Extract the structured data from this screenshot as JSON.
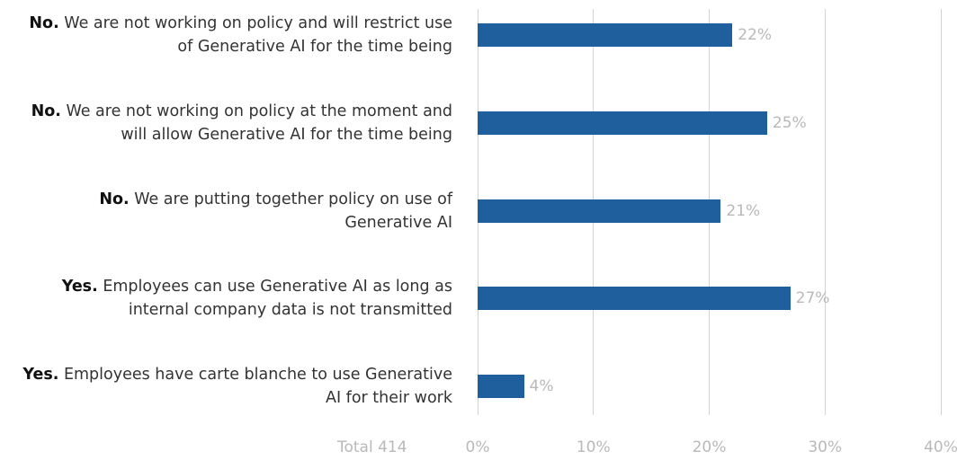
{
  "chart_data": {
    "type": "hbar",
    "categories": [
      "No. We are not working on policy and will restrict use of Generative AI for the time being",
      "No. We are not working on policy at the moment and will allow Generative AI for the time being",
      "No. We are putting together policy on use of Generative AI",
      "Yes. Employees can use Generative AI as long as internal company data is not transmitted",
      "Yes. Employees have carte blanche to use Generative AI for their work"
    ],
    "values": [
      22,
      25,
      21,
      27,
      4
    ],
    "value_labels": [
      "22%",
      "25%",
      "21%",
      "27%",
      "4%"
    ],
    "color": "#1f5f9e",
    "xlim": [
      0,
      40
    ],
    "xticks": [
      {
        "value": 0,
        "label": "0%"
      },
      {
        "value": 10,
        "label": "10%"
      },
      {
        "value": 20,
        "label": "20%"
      },
      {
        "value": 30,
        "label": "30%"
      },
      {
        "value": 40,
        "label": "40%"
      }
    ],
    "grid": true,
    "annotation": "Total 414"
  }
}
